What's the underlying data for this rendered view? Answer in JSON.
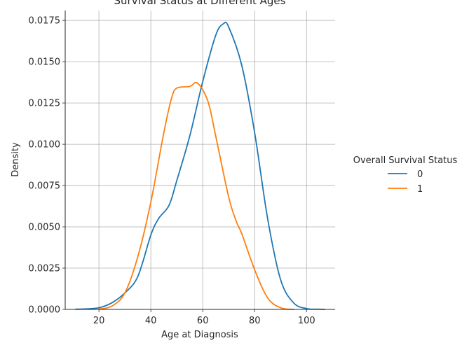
{
  "chart_data": {
    "type": "line",
    "title": "Survival Status at Different Ages",
    "xlabel": "Age at Diagnosis",
    "ylabel": "Density",
    "xlim": [
      7,
      111
    ],
    "ylim": [
      0,
      0.0181
    ],
    "x_ticks": [
      20,
      40,
      60,
      80,
      100
    ],
    "y_ticks": [
      0.0,
      0.0025,
      0.005,
      0.0075,
      0.01,
      0.0125,
      0.015,
      0.0175
    ],
    "grid": true,
    "legend": {
      "title": "Overall Survival Status",
      "placement": "right-outside"
    },
    "series": [
      {
        "name": "0",
        "color": "#1f77b4",
        "x": [
          11,
          15,
          20,
          25,
          30,
          35,
          40,
          43,
          47,
          50,
          55,
          60,
          65,
          68,
          70,
          75,
          80,
          85,
          90,
          95,
          100,
          105,
          107
        ],
        "y": [
          1e-05,
          3e-05,
          0.0001,
          0.0004,
          0.001,
          0.002,
          0.0045,
          0.0055,
          0.0063,
          0.0078,
          0.0105,
          0.0138,
          0.0166,
          0.0173,
          0.0171,
          0.0148,
          0.0107,
          0.0055,
          0.0018,
          0.0004,
          5e-05,
          1e-05,
          0.0
        ]
      },
      {
        "name": "1",
        "color": "#ff7f0e",
        "x": [
          20,
          25,
          30,
          35,
          40,
          45,
          48,
          50,
          55,
          58,
          62,
          65,
          70,
          73,
          75,
          80,
          85,
          90,
          95
        ],
        "y": [
          2e-05,
          0.0002,
          0.001,
          0.0032,
          0.0065,
          0.0107,
          0.0128,
          0.0134,
          0.0135,
          0.0137,
          0.0126,
          0.0105,
          0.0068,
          0.0053,
          0.0046,
          0.0024,
          0.0007,
          0.0001,
          0.0
        ]
      }
    ]
  }
}
